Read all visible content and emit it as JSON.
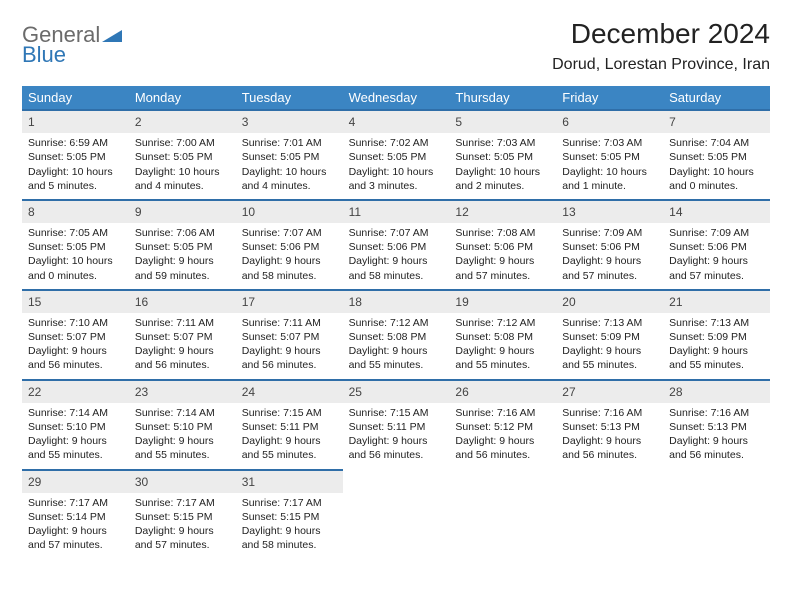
{
  "logo": {
    "word1": "General",
    "word2": "Blue"
  },
  "title": "December 2024",
  "location": "Dorud, Lorestan Province, Iran",
  "colors": {
    "header_bg": "#3b85c3",
    "header_text": "#ffffff",
    "date_bg": "#ececec",
    "date_border": "#2f6ea8",
    "logo_gray": "#6b6b6b",
    "logo_blue": "#2f77b6",
    "page_bg": "#ffffff"
  },
  "day_names": [
    "Sunday",
    "Monday",
    "Tuesday",
    "Wednesday",
    "Thursday",
    "Friday",
    "Saturday"
  ],
  "weeks": [
    [
      {
        "n": "1",
        "sr": "6:59 AM",
        "ss": "5:05 PM",
        "dl": "10 hours and 5 minutes."
      },
      {
        "n": "2",
        "sr": "7:00 AM",
        "ss": "5:05 PM",
        "dl": "10 hours and 4 minutes."
      },
      {
        "n": "3",
        "sr": "7:01 AM",
        "ss": "5:05 PM",
        "dl": "10 hours and 4 minutes."
      },
      {
        "n": "4",
        "sr": "7:02 AM",
        "ss": "5:05 PM",
        "dl": "10 hours and 3 minutes."
      },
      {
        "n": "5",
        "sr": "7:03 AM",
        "ss": "5:05 PM",
        "dl": "10 hours and 2 minutes."
      },
      {
        "n": "6",
        "sr": "7:03 AM",
        "ss": "5:05 PM",
        "dl": "10 hours and 1 minute."
      },
      {
        "n": "7",
        "sr": "7:04 AM",
        "ss": "5:05 PM",
        "dl": "10 hours and 0 minutes."
      }
    ],
    [
      {
        "n": "8",
        "sr": "7:05 AM",
        "ss": "5:05 PM",
        "dl": "10 hours and 0 minutes."
      },
      {
        "n": "9",
        "sr": "7:06 AM",
        "ss": "5:05 PM",
        "dl": "9 hours and 59 minutes."
      },
      {
        "n": "10",
        "sr": "7:07 AM",
        "ss": "5:06 PM",
        "dl": "9 hours and 58 minutes."
      },
      {
        "n": "11",
        "sr": "7:07 AM",
        "ss": "5:06 PM",
        "dl": "9 hours and 58 minutes."
      },
      {
        "n": "12",
        "sr": "7:08 AM",
        "ss": "5:06 PM",
        "dl": "9 hours and 57 minutes."
      },
      {
        "n": "13",
        "sr": "7:09 AM",
        "ss": "5:06 PM",
        "dl": "9 hours and 57 minutes."
      },
      {
        "n": "14",
        "sr": "7:09 AM",
        "ss": "5:06 PM",
        "dl": "9 hours and 57 minutes."
      }
    ],
    [
      {
        "n": "15",
        "sr": "7:10 AM",
        "ss": "5:07 PM",
        "dl": "9 hours and 56 minutes."
      },
      {
        "n": "16",
        "sr": "7:11 AM",
        "ss": "5:07 PM",
        "dl": "9 hours and 56 minutes."
      },
      {
        "n": "17",
        "sr": "7:11 AM",
        "ss": "5:07 PM",
        "dl": "9 hours and 56 minutes."
      },
      {
        "n": "18",
        "sr": "7:12 AM",
        "ss": "5:08 PM",
        "dl": "9 hours and 55 minutes."
      },
      {
        "n": "19",
        "sr": "7:12 AM",
        "ss": "5:08 PM",
        "dl": "9 hours and 55 minutes."
      },
      {
        "n": "20",
        "sr": "7:13 AM",
        "ss": "5:09 PM",
        "dl": "9 hours and 55 minutes."
      },
      {
        "n": "21",
        "sr": "7:13 AM",
        "ss": "5:09 PM",
        "dl": "9 hours and 55 minutes."
      }
    ],
    [
      {
        "n": "22",
        "sr": "7:14 AM",
        "ss": "5:10 PM",
        "dl": "9 hours and 55 minutes."
      },
      {
        "n": "23",
        "sr": "7:14 AM",
        "ss": "5:10 PM",
        "dl": "9 hours and 55 minutes."
      },
      {
        "n": "24",
        "sr": "7:15 AM",
        "ss": "5:11 PM",
        "dl": "9 hours and 55 minutes."
      },
      {
        "n": "25",
        "sr": "7:15 AM",
        "ss": "5:11 PM",
        "dl": "9 hours and 56 minutes."
      },
      {
        "n": "26",
        "sr": "7:16 AM",
        "ss": "5:12 PM",
        "dl": "9 hours and 56 minutes."
      },
      {
        "n": "27",
        "sr": "7:16 AM",
        "ss": "5:13 PM",
        "dl": "9 hours and 56 minutes."
      },
      {
        "n": "28",
        "sr": "7:16 AM",
        "ss": "5:13 PM",
        "dl": "9 hours and 56 minutes."
      }
    ],
    [
      {
        "n": "29",
        "sr": "7:17 AM",
        "ss": "5:14 PM",
        "dl": "9 hours and 57 minutes."
      },
      {
        "n": "30",
        "sr": "7:17 AM",
        "ss": "5:15 PM",
        "dl": "9 hours and 57 minutes."
      },
      {
        "n": "31",
        "sr": "7:17 AM",
        "ss": "5:15 PM",
        "dl": "9 hours and 58 minutes."
      },
      null,
      null,
      null,
      null
    ]
  ],
  "labels": {
    "sunrise": "Sunrise:",
    "sunset": "Sunset:",
    "daylight": "Daylight:"
  }
}
